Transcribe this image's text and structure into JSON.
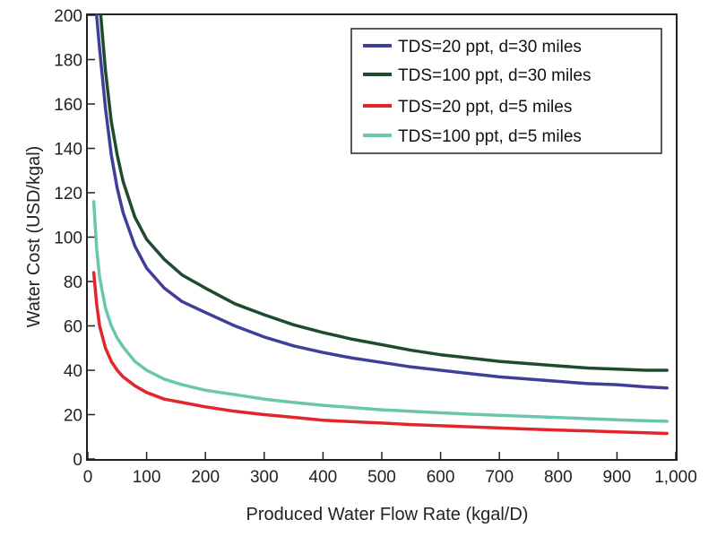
{
  "chart_data": {
    "type": "line",
    "title": "",
    "xlabel": "Produced Water Flow Rate (kgal/D)",
    "ylabel": "Water Cost (USD/kgal)",
    "xlim": [
      0,
      1000
    ],
    "ylim": [
      0,
      200
    ],
    "x_ticks": [
      0,
      100,
      200,
      300,
      400,
      500,
      600,
      700,
      800,
      900,
      1000
    ],
    "x_tick_labels": [
      "0",
      "100",
      "200",
      "300",
      "400",
      "500",
      "600",
      "700",
      "800",
      "900",
      "1,000"
    ],
    "y_ticks": [
      0,
      20,
      40,
      60,
      80,
      100,
      120,
      140,
      160,
      180,
      200
    ],
    "y_tick_labels": [
      "0",
      "20",
      "40",
      "60",
      "80",
      "100",
      "120",
      "140",
      "160",
      "180",
      "200"
    ],
    "grid": false,
    "legend_position": "top-right",
    "series": [
      {
        "name": "TDS=20 ppt, d=30 miles",
        "color": "#3f3f9a",
        "x": [
          15,
          20,
          30,
          40,
          50,
          60,
          80,
          100,
          130,
          160,
          200,
          250,
          300,
          350,
          400,
          450,
          500,
          550,
          600,
          650,
          700,
          750,
          800,
          850,
          900,
          950,
          985
        ],
        "y": [
          200,
          185,
          158,
          137,
          122,
          111,
          96,
          86,
          77,
          71,
          66,
          60,
          55,
          51,
          48,
          45.5,
          43.5,
          41.5,
          40,
          38.5,
          37,
          36,
          35,
          34,
          33.5,
          32.5,
          32
        ]
      },
      {
        "name": "TDS=100 ppt, d=30 miles",
        "color": "#1f4a2e",
        "x": [
          22,
          30,
          40,
          50,
          60,
          80,
          100,
          130,
          160,
          200,
          250,
          300,
          350,
          400,
          450,
          500,
          550,
          600,
          650,
          700,
          750,
          800,
          850,
          900,
          950,
          985
        ],
        "y": [
          200,
          175,
          152,
          137,
          125,
          109,
          99,
          90,
          83,
          77,
          70,
          65,
          60.5,
          57,
          54,
          51.5,
          49,
          47,
          45.5,
          44,
          43,
          42,
          41,
          40.5,
          40,
          40
        ]
      },
      {
        "name": "TDS=20 ppt, d=5 miles",
        "color": "#e0262b",
        "x": [
          10,
          15,
          20,
          30,
          40,
          50,
          60,
          80,
          100,
          130,
          160,
          200,
          250,
          300,
          350,
          400,
          450,
          500,
          550,
          600,
          650,
          700,
          750,
          800,
          850,
          900,
          950,
          985
        ],
        "y": [
          84,
          70,
          60,
          50,
          44,
          40,
          37,
          33,
          30,
          27,
          25.5,
          23.5,
          21.5,
          20,
          18.8,
          17.5,
          16.8,
          16.2,
          15.5,
          15,
          14.5,
          14,
          13.5,
          13,
          12.7,
          12.2,
          11.8,
          11.5
        ]
      },
      {
        "name": "TDS=100 ppt, d=5 miles",
        "color": "#6cc6ab",
        "x": [
          10,
          15,
          20,
          30,
          40,
          50,
          60,
          80,
          100,
          130,
          160,
          200,
          250,
          300,
          350,
          400,
          450,
          500,
          550,
          600,
          650,
          700,
          750,
          800,
          850,
          900,
          950,
          985
        ],
        "y": [
          116,
          95,
          82,
          68,
          60,
          54.5,
          50.5,
          44,
          40,
          36,
          33.5,
          31,
          29,
          27,
          25.5,
          24.2,
          23.2,
          22.2,
          21.5,
          20.8,
          20.2,
          19.7,
          19.2,
          18.7,
          18.2,
          17.7,
          17.2,
          17
        ]
      }
    ]
  }
}
